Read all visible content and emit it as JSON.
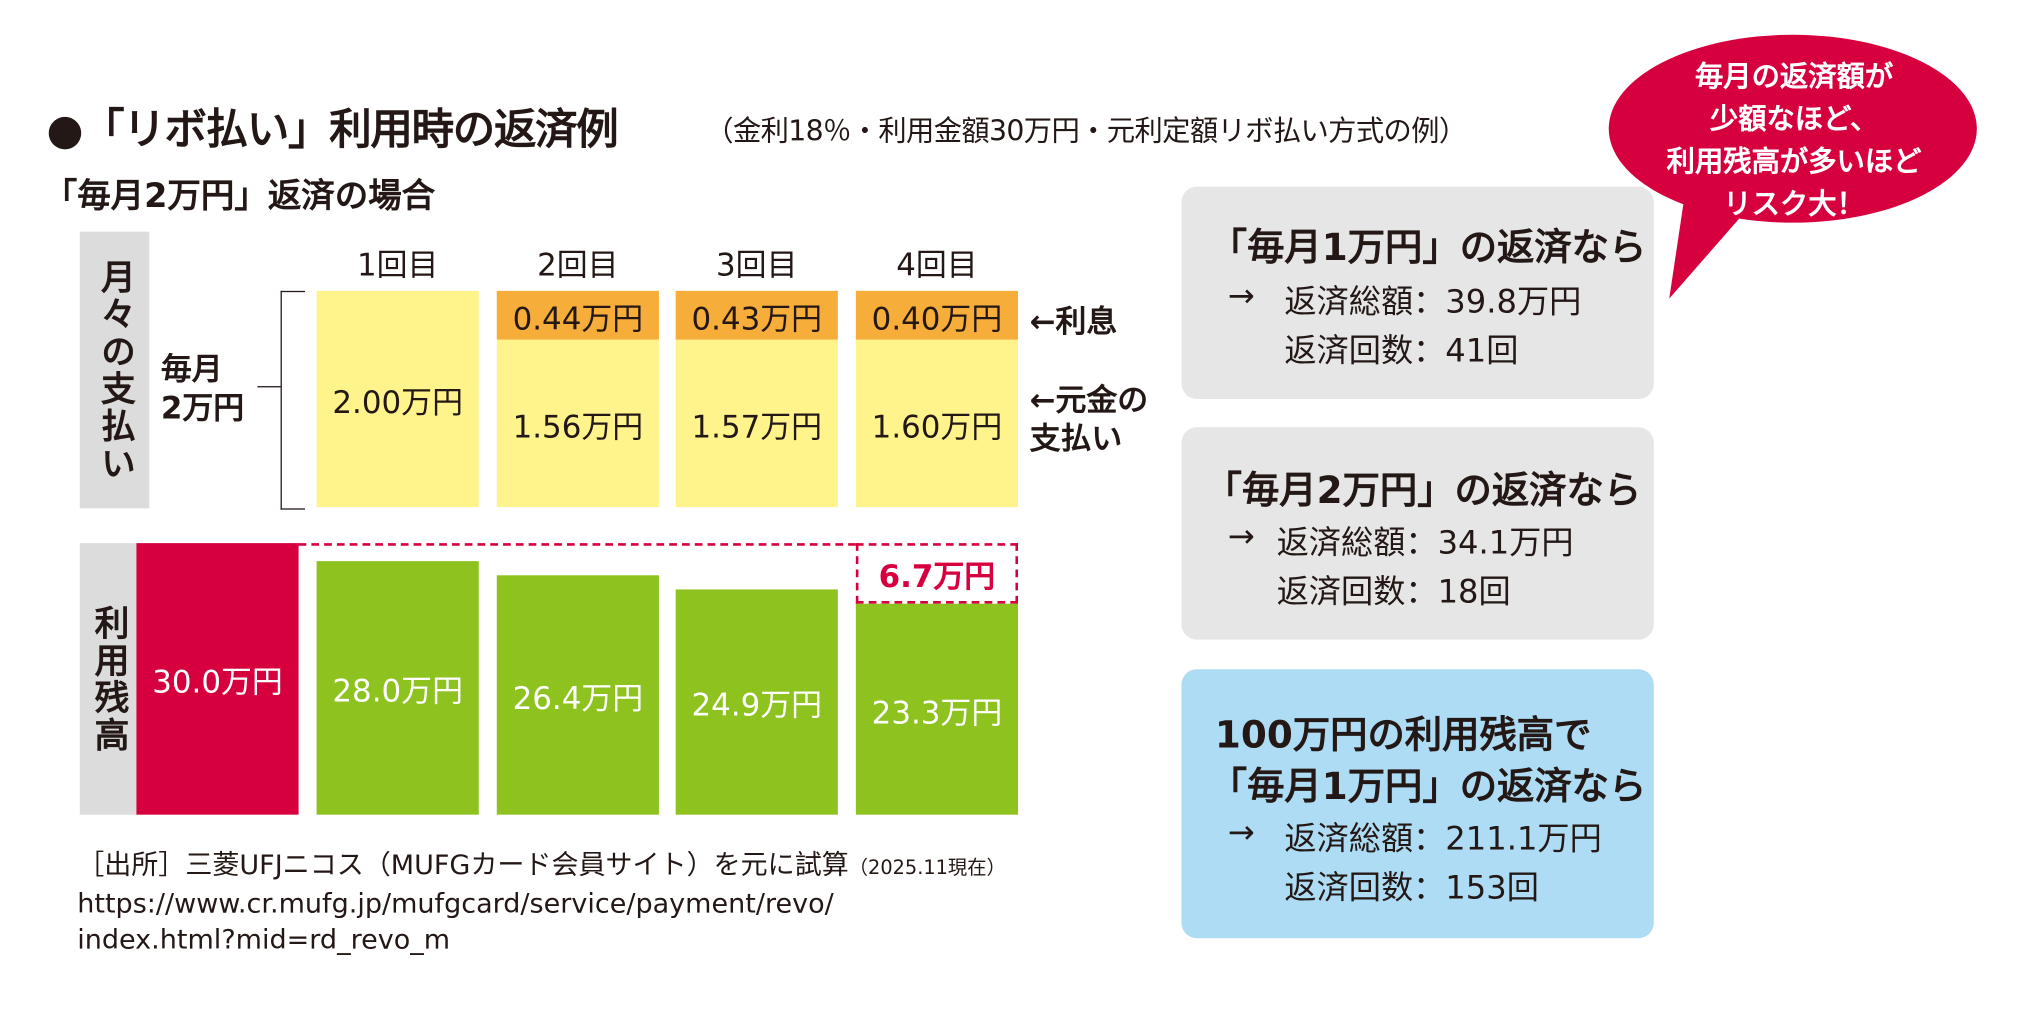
{
  "title": "●「リボ払い」利用時の返済例",
  "subtitle": "（金利18％・利用金額30万円・元利定額リボ払い方式の例）",
  "case_heading": "「毎月2万円」返済の場合",
  "colors": {
    "interest": "#f7ad3a",
    "principal": "#fff48c",
    "balance_initial": "#d7003f",
    "balance": "#8dc21f",
    "label_bg": "#dcdcdc",
    "box_gray": "#e6e6e6",
    "box_blue": "#addcf4",
    "bubble": "#d7003f",
    "accent_red": "#d7003f"
  },
  "chart_data": {
    "type": "bar",
    "categories": [
      "",
      "1回目",
      "2回目",
      "3回目",
      "4回目"
    ],
    "payment_section_label": "月々の支払い",
    "balance_section_label": "利用残高",
    "monthly_payment_label": "毎月\n2万円",
    "series": [
      {
        "name": "利息",
        "values": [
          null,
          null,
          0.44,
          0.43,
          0.4
        ],
        "labels": [
          "",
          "",
          "0.44万円",
          "0.43万円",
          "0.40万円"
        ]
      },
      {
        "name": "元金の支払い",
        "values": [
          null,
          2.0,
          1.56,
          1.57,
          1.6
        ],
        "labels": [
          "",
          "2.00万円",
          "1.56万円",
          "1.57万円",
          "1.60万円"
        ]
      },
      {
        "name": "利用残高",
        "values": [
          30.0,
          28.0,
          26.4,
          24.9,
          23.3
        ],
        "labels": [
          "30.0万円",
          "28.0万円",
          "26.4万円",
          "24.9万円",
          "23.3万円"
        ]
      }
    ],
    "annotations": {
      "interest_arrow": "←利息",
      "principal_arrow": "←元金の\n支払い",
      "reduction": "6.7万円"
    },
    "unit": "万円"
  },
  "source": {
    "line1": "［出所］三菱UFJニコス（MUFGカード会員サイト）を元に試算",
    "date": "（2025.11現在）",
    "url1": "https://www.cr.mufg.jp/mufgcard/service/payment/revo/",
    "url2": "index.html?mid=rd_revo_m"
  },
  "boxes": [
    {
      "heading": [
        "「毎月1万円」の返済なら"
      ],
      "arrow": "→",
      "total": "返済総額：39.8万円",
      "count": "返済回数：41回"
    },
    {
      "heading": [
        "「毎月2万円」の返済なら"
      ],
      "arrow": "→",
      "total": "返済総額：34.1万円",
      "count": "返済回数：18回"
    },
    {
      "heading": [
        "100万円の利用残高で",
        "「毎月1万円」の返済なら"
      ],
      "arrow": "→",
      "total": "返済総額：211.1万円",
      "count": "返済回数：153回"
    }
  ],
  "bubble": {
    "lines": [
      "毎月の返済額が",
      "少額なほど、",
      "利用残高が多いほど",
      "リスク大！"
    ]
  }
}
